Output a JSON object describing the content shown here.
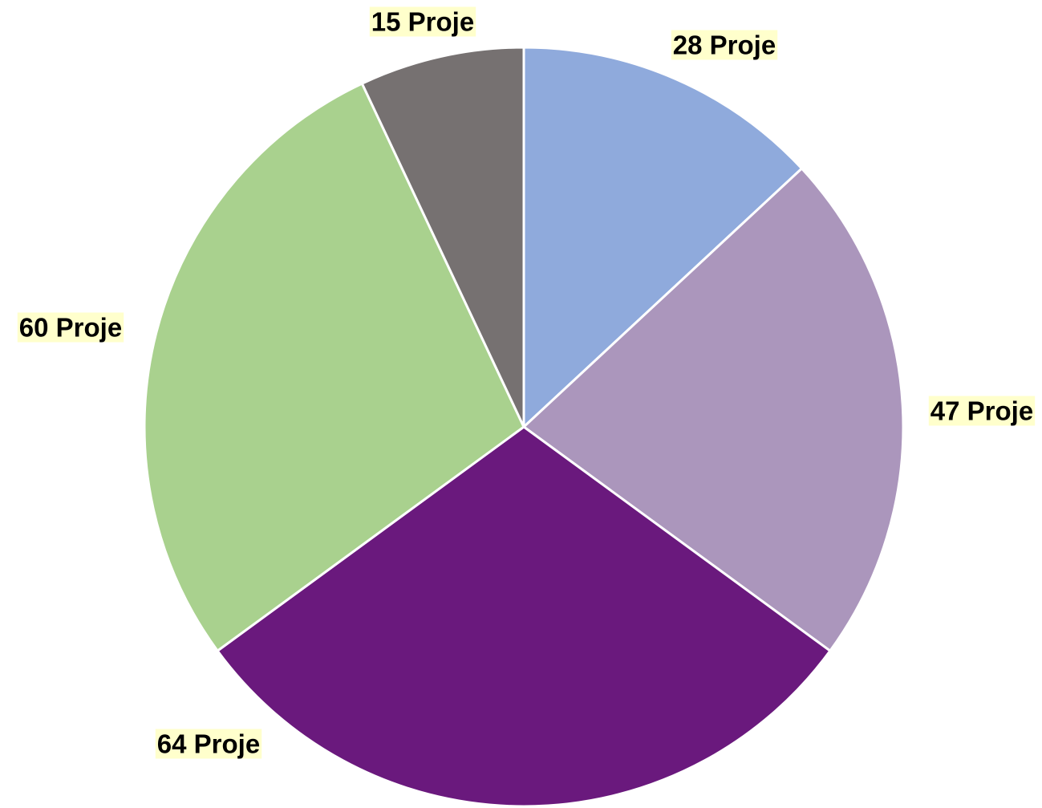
{
  "chart_data": {
    "type": "pie",
    "values": [
      28,
      47,
      64,
      60,
      15
    ],
    "value_labels": [
      "28 Proje",
      "47 Proje",
      "64 Proje",
      "60 Proje",
      "15 Proje"
    ],
    "colors": [
      "#8faadc",
      "#ab96bc",
      "#6a197d",
      "#a9d18e",
      "#767171"
    ]
  }
}
